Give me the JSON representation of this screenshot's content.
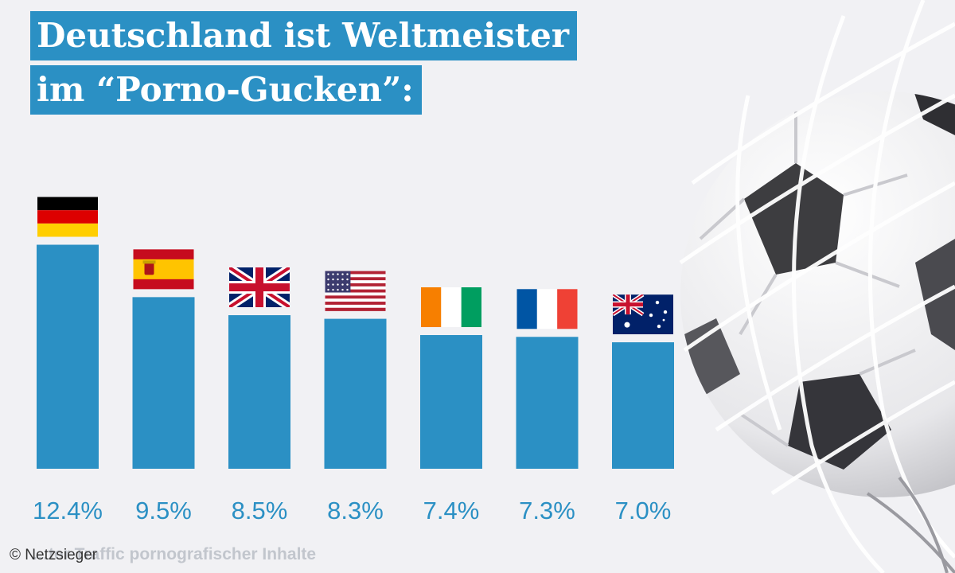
{
  "title": {
    "line1": "Deutschland ist Weltmeister",
    "line2": "im “Porno-Gucken”:"
  },
  "colors": {
    "bar": "#2b90c4",
    "title_bg": "#2b90c4",
    "background": "#f1f1f4"
  },
  "chart_data": {
    "type": "bar",
    "categories": [
      "Germany",
      "Spain",
      "United Kingdom",
      "USA",
      "Ivory Coast",
      "France",
      "Australia"
    ],
    "flags": [
      "flag-germany",
      "flag-spain",
      "flag-uk",
      "flag-usa",
      "flag-ivory-coast",
      "flag-france",
      "flag-australia"
    ],
    "values": [
      12.4,
      9.5,
      8.5,
      8.3,
      7.4,
      7.3,
      7.0
    ],
    "value_labels": [
      "12.4%",
      "9.5%",
      "8.5%",
      "8.3%",
      "7.4%",
      "7.3%",
      "7.0%"
    ],
    "unit": "%",
    "grid": false,
    "legend": "none"
  },
  "footer": {
    "caption": "…ter Traffic pornografischer Inhalte",
    "credit": "© Netzsieger"
  }
}
